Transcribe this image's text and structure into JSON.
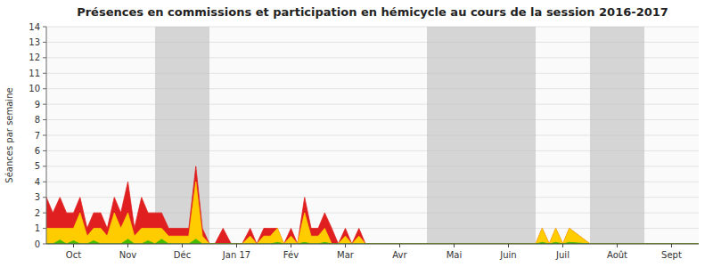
{
  "chart_data": {
    "type": "area",
    "title": "Présences en commissions et participation en hémicycle au cours de la session 2016-2017",
    "y_label": "Séances par semaine",
    "x": [
      0.0,
      0.12,
      0.25,
      0.37,
      0.5,
      0.62,
      0.75,
      0.87,
      1.0,
      1.12,
      1.25,
      1.37,
      1.5,
      1.62,
      1.75,
      1.87,
      2.0,
      2.12,
      2.25,
      2.37,
      2.5,
      2.62,
      2.75,
      2.87,
      3.0,
      3.1,
      3.25,
      3.4,
      3.5,
      3.6,
      3.75,
      3.87,
      4.0,
      4.12,
      4.25,
      4.37,
      4.5,
      4.62,
      4.75,
      4.87,
      5.0,
      5.12,
      5.25,
      5.37,
      5.5,
      5.62,
      5.75,
      5.87,
      6.0,
      6.5,
      7.0,
      7.5,
      8.0,
      8.5,
      9.0,
      9.12,
      9.25,
      9.37,
      9.5,
      9.62,
      10.0,
      10.5,
      11.0,
      11.5,
      12.0
    ],
    "series": [
      {
        "color": "#e02020",
        "values": [
          3,
          2,
          3,
          2,
          2,
          3,
          1,
          2,
          2,
          1,
          3,
          2,
          4,
          1,
          3,
          2,
          2,
          2,
          1,
          1,
          1,
          1,
          5,
          1,
          0,
          0,
          1,
          0,
          0,
          0,
          1,
          0,
          1,
          1,
          1,
          0,
          1,
          0,
          3,
          1,
          1,
          2,
          1,
          0,
          1,
          0,
          1,
          0,
          0,
          0,
          0,
          0,
          0,
          0,
          0,
          1,
          0,
          1,
          0,
          1,
          0,
          0,
          0,
          0,
          0
        ]
      },
      {
        "color": "#ffcc00",
        "values": [
          1,
          1,
          1,
          1,
          1,
          2,
          0.5,
          1,
          1,
          0.5,
          2,
          1,
          2,
          0.5,
          1,
          1,
          1,
          1,
          0.5,
          0.5,
          0.5,
          0.5,
          4,
          0.5,
          0,
          0,
          0,
          0,
          0,
          0,
          0.5,
          0,
          0.5,
          0.5,
          1,
          0,
          0.5,
          0,
          2,
          0.5,
          0.5,
          1,
          0,
          0,
          0.5,
          0,
          0.5,
          0,
          0,
          0,
          0,
          0,
          0,
          0,
          0,
          1,
          0,
          1,
          0,
          1,
          0,
          0,
          0,
          0,
          0
        ]
      },
      {
        "color": "#44bb00",
        "values": [
          0,
          0,
          0.25,
          0,
          0.2,
          0,
          0,
          0.2,
          0,
          0,
          0,
          0,
          0.3,
          0,
          0,
          0.2,
          0,
          0.3,
          0,
          0,
          0,
          0,
          0.3,
          0,
          0,
          0,
          0,
          0,
          0,
          0,
          0,
          0,
          0,
          0,
          0.1,
          0,
          0,
          0,
          0.1,
          0,
          0,
          0.1,
          0,
          0,
          0,
          0,
          0,
          0,
          0,
          0,
          0,
          0,
          0,
          0,
          0,
          0.1,
          0,
          0.1,
          0,
          0.1,
          0,
          0,
          0,
          0,
          0
        ]
      }
    ],
    "x_bands": [
      [
        2,
        3
      ],
      [
        7,
        8
      ],
      [
        8,
        9
      ],
      [
        10,
        11
      ]
    ],
    "xlim": [
      0,
      12
    ],
    "xticks": [
      {
        "value": 0.5,
        "label": "Oct"
      },
      {
        "value": 1.5,
        "label": "Nov"
      },
      {
        "value": 2.5,
        "label": "Déc"
      },
      {
        "value": 3.5,
        "label": "Jan 17"
      },
      {
        "value": 4.5,
        "label": "Fév"
      },
      {
        "value": 5.5,
        "label": "Mar"
      },
      {
        "value": 6.5,
        "label": "Avr"
      },
      {
        "value": 7.5,
        "label": "Mai"
      },
      {
        "value": 8.5,
        "label": "Juin"
      },
      {
        "value": 9.5,
        "label": "Juil"
      },
      {
        "value": 10.5,
        "label": "Août"
      },
      {
        "value": 11.5,
        "label": "Sept"
      }
    ],
    "ylim": [
      0,
      14
    ],
    "yticks": [
      0,
      1,
      2,
      3,
      4,
      5,
      6,
      7,
      8,
      9,
      10,
      11,
      12,
      13,
      14
    ],
    "grid": true
  }
}
